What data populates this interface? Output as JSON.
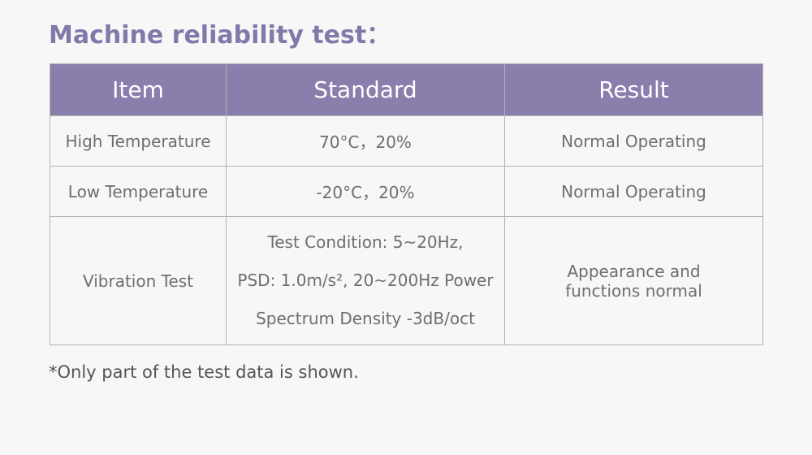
{
  "title": "Machine reliability test：",
  "table": {
    "headers": [
      "Item",
      "Standard",
      "Result"
    ],
    "rows": [
      {
        "item": "High Temperature",
        "standard": [
          "70°C，20%"
        ],
        "result": [
          "Normal Operating"
        ]
      },
      {
        "item": "Low Temperature",
        "standard": [
          "-20°C，20%"
        ],
        "result": [
          "Normal Operating"
        ]
      },
      {
        "item": "Vibration Test",
        "standard": [
          "Test Condition: 5~20Hz,",
          "PSD: 1.0m/s², 20~200Hz Power",
          "Spectrum Density -3dB/oct"
        ],
        "result": [
          "Appearance and",
          "functions normal"
        ]
      }
    ]
  },
  "footnote": "*Only part of the test data is shown.",
  "colors": {
    "title": "#8378aa",
    "header_bg": "#8a7ead",
    "header_text": "#ffffff",
    "cell_text": "#6e6e6e",
    "border": "#b3b3b3",
    "background": "#f7f7f7"
  }
}
